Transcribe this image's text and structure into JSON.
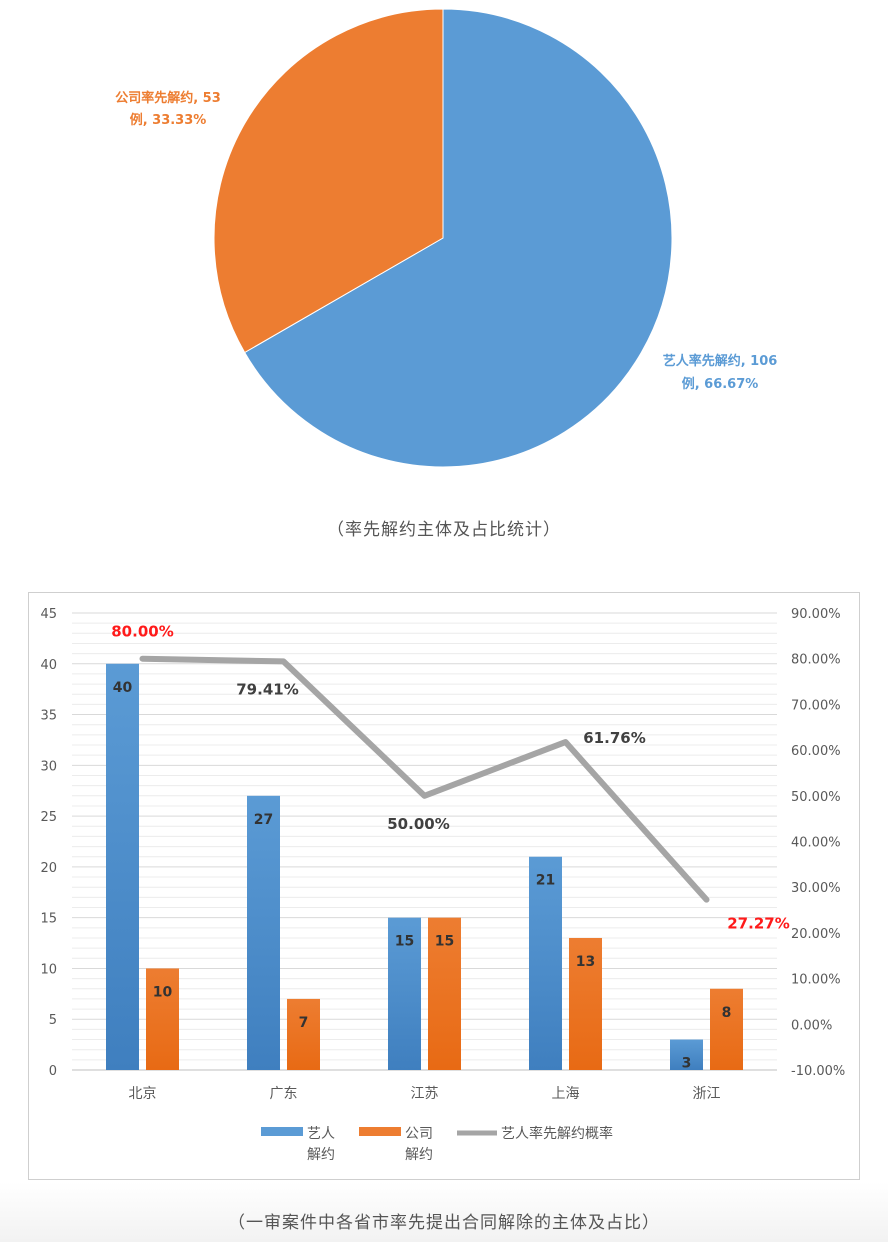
{
  "chart_data": [
    {
      "type": "pie",
      "slices": [
        {
          "label_lines": [
            "艺人率先解约, 106",
            "例, 66.67%"
          ],
          "value": 106,
          "percent": 66.67,
          "color": "#5b9bd5"
        },
        {
          "label_lines": [
            "公司率先解约, 53",
            "例, 33.33%"
          ],
          "value": 53,
          "percent": 33.33,
          "color": "#ed7d31"
        }
      ]
    },
    {
      "type": "bar",
      "categories": [
        "北京",
        "广东",
        "江苏",
        "上海",
        "浙江"
      ],
      "series": [
        {
          "name": "艺人\n解约",
          "values": [
            40,
            27,
            15,
            21,
            3
          ],
          "color": "#5b9bd5"
        },
        {
          "name": "公司\n解约",
          "values": [
            10,
            7,
            15,
            13,
            8
          ],
          "color": "#ed7d31"
        },
        {
          "name": "艺人率先解约概率",
          "type": "line",
          "axis": "right",
          "values": [
            80.0,
            79.41,
            50.0,
            61.76,
            27.27
          ],
          "labels": [
            "80.00%",
            "79.41%",
            "50.00%",
            "61.76%",
            "27.27%"
          ],
          "highlighted": [
            true,
            false,
            false,
            false,
            true
          ],
          "color": "#a5a5a5",
          "highlight_color": "#ff1a1a"
        }
      ],
      "y_left": {
        "ylim": [
          0,
          45
        ],
        "ticks": [
          "0",
          "5",
          "10",
          "15",
          "20",
          "25",
          "30",
          "35",
          "40",
          "45"
        ]
      },
      "y_right": {
        "ylim": [
          -10,
          90
        ],
        "ticks": [
          "-10.00%",
          "0.00%",
          "10.00%",
          "20.00%",
          "30.00%",
          "40.00%",
          "50.00%",
          "60.00%",
          "70.00%",
          "80.00%",
          "90.00%"
        ]
      },
      "grid": true,
      "legend": "bottom"
    }
  ],
  "captions": {
    "pie": "（率先解约主体及占比统计）",
    "bar": "（一审案件中各省市率先提出合同解除的主体及占比）"
  }
}
